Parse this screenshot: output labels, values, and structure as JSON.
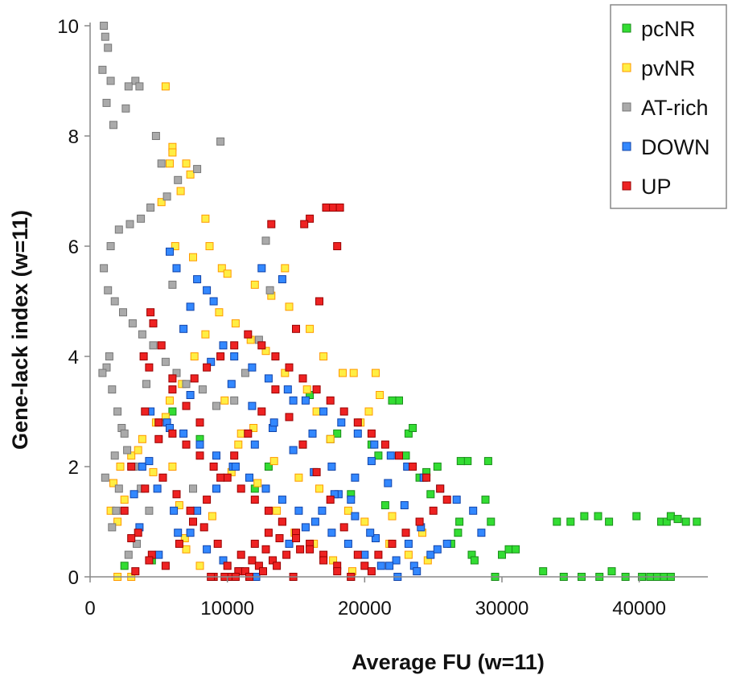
{
  "chart_data": {
    "type": "scatter",
    "title": "",
    "xlabel": "Average FU (w=11)",
    "ylabel": "Gene-lack index (w=11)",
    "xlim": [
      0,
      45000
    ],
    "ylim": [
      0,
      10
    ],
    "xticks": [
      0,
      10000,
      20000,
      30000,
      40000
    ],
    "yticks": [
      0,
      2,
      4,
      6,
      8,
      10
    ],
    "xtick_labels": [
      "0",
      "10000",
      "20000",
      "30000",
      "40000"
    ],
    "ytick_labels": [
      "0",
      "2",
      "4",
      "6",
      "8",
      "10"
    ],
    "legend_position": "top-right",
    "grid": false,
    "series": [
      {
        "name": "pcNR",
        "fill": "#33dd33",
        "edge": "#1a8c1a",
        "x": [
          34000,
          35000,
          36000,
          37000,
          37800,
          39800,
          41600,
          42000,
          42300,
          43400,
          44200,
          42800,
          33000,
          34500,
          35800,
          37100,
          38000,
          39000,
          40200,
          40800,
          41300,
          41800,
          42300,
          30000,
          30500,
          31000,
          29500,
          28800,
          29200,
          29000,
          27500,
          27000,
          26800,
          26300,
          27800,
          26900,
          28000,
          22500,
          22000,
          23200,
          23500,
          23000,
          24000,
          24500,
          21000,
          20500,
          21500,
          19000,
          18000,
          17500,
          16000,
          15500,
          13000,
          12000,
          8000,
          6000,
          4500,
          2500,
          24800,
          25300
        ],
        "y": [
          1.0,
          1.0,
          1.1,
          1.1,
          1.0,
          1.1,
          1.0,
          1.0,
          1.1,
          1.0,
          1.0,
          1.05,
          0.1,
          0.0,
          0.0,
          0.0,
          0.1,
          0.0,
          0.0,
          0.0,
          0.0,
          0.0,
          0.0,
          0.4,
          0.5,
          0.5,
          0.0,
          1.4,
          1.0,
          2.1,
          2.1,
          2.1,
          0.8,
          0.6,
          0.4,
          1.0,
          0.3,
          3.2,
          3.2,
          2.6,
          2.7,
          2.2,
          1.8,
          1.9,
          2.2,
          2.4,
          1.3,
          1.5,
          2.6,
          2.5,
          3.3,
          2.4,
          2.0,
          1.6,
          2.5,
          3.0,
          0.3,
          0.2,
          1.5,
          2.0
        ]
      },
      {
        "name": "pvNR",
        "fill": "#ffee44",
        "edge": "#ff9900",
        "x": [
          5500,
          6000,
          6000,
          5800,
          7000,
          7300,
          6600,
          8400,
          8700,
          5200,
          6200,
          7500,
          9600,
          10000,
          12000,
          13200,
          14500,
          16000,
          17000,
          18400,
          19200,
          20800,
          21100,
          20300,
          19700,
          17500,
          16500,
          15800,
          14200,
          12800,
          11700,
          10600,
          9400,
          8400,
          7600,
          6700,
          5800,
          4800,
          3800,
          3000,
          2200,
          1700,
          1500,
          2000,
          11000,
          13400,
          15200,
          16700,
          18800,
          20000,
          21800,
          23200,
          24600,
          24200,
          22000,
          9000,
          8000,
          7000,
          6500,
          6000,
          5500,
          9800,
          10800,
          12200,
          13600,
          14900,
          16300,
          17700,
          19100,
          2500,
          3500,
          4600,
          2000,
          3000,
          6900,
          8900,
          10300,
          11900,
          14200
        ],
        "y": [
          8.9,
          7.8,
          7.7,
          7.5,
          7.5,
          7.3,
          7.0,
          6.5,
          6.0,
          6.8,
          6.0,
          5.8,
          5.6,
          5.5,
          5.3,
          5.1,
          4.9,
          4.5,
          4.0,
          3.7,
          3.7,
          3.7,
          3.3,
          3.0,
          2.8,
          2.5,
          3.0,
          3.4,
          3.7,
          4.1,
          4.3,
          4.6,
          4.8,
          4.4,
          4.0,
          3.5,
          3.2,
          2.8,
          2.5,
          2.2,
          2.0,
          1.7,
          1.2,
          1.0,
          2.6,
          2.1,
          1.8,
          1.6,
          1.2,
          1.0,
          0.6,
          0.4,
          0.3,
          0.8,
          1.1,
          0.0,
          0.2,
          0.5,
          1.3,
          2.0,
          2.9,
          3.2,
          2.4,
          1.7,
          1.2,
          0.8,
          0.6,
          0.3,
          0.1,
          1.4,
          2.3,
          1.9,
          0.0,
          0.0,
          0.7,
          1.1,
          1.9,
          2.7,
          5.6
        ]
      },
      {
        "name": "AT-rich",
        "fill": "#aaaaaa",
        "edge": "#777777",
        "x": [
          1000,
          1100,
          1300,
          900,
          1500,
          3300,
          3600,
          2800,
          2600,
          1700,
          1200,
          4800,
          5200,
          9500,
          7800,
          6400,
          5600,
          4400,
          3700,
          2900,
          2100,
          1500,
          1000,
          1300,
          1800,
          2400,
          3100,
          3800,
          4600,
          5500,
          6300,
          7000,
          8200,
          9200,
          12800,
          13100,
          12300,
          11300,
          10500,
          1200,
          1600,
          2000,
          2300,
          2700,
          3200,
          3700,
          4300,
          1800,
          2100,
          900,
          1400,
          2500,
          1100,
          1900,
          3400,
          1600,
          2800,
          7500,
          6000,
          4100
        ],
        "y": [
          10.0,
          9.8,
          9.6,
          9.2,
          9.0,
          9.0,
          8.9,
          8.9,
          8.5,
          8.2,
          8.6,
          8.0,
          7.5,
          7.9,
          7.4,
          7.2,
          6.9,
          6.7,
          6.5,
          6.4,
          6.3,
          6.0,
          5.6,
          5.2,
          5.0,
          4.8,
          4.6,
          4.4,
          4.2,
          3.9,
          3.7,
          3.5,
          3.4,
          3.1,
          6.1,
          5.2,
          4.3,
          3.7,
          3.2,
          3.8,
          3.4,
          3.0,
          2.7,
          2.3,
          2.0,
          1.6,
          1.2,
          2.2,
          1.6,
          3.7,
          4.0,
          2.6,
          1.8,
          1.2,
          0.6,
          0.9,
          0.4,
          1.6,
          5.3,
          3.5
        ]
      },
      {
        "name": "DOWN",
        "fill": "#3388ff",
        "edge": "#1144aa",
        "x": [
          5800,
          6300,
          7800,
          8500,
          9000,
          12500,
          14000,
          7300,
          6800,
          9700,
          10500,
          11800,
          13000,
          14400,
          15700,
          17000,
          18300,
          19500,
          20700,
          21900,
          23100,
          24300,
          25500,
          26700,
          27900,
          28500,
          26000,
          24800,
          23600,
          22400,
          21200,
          20000,
          18800,
          17600,
          16400,
          15200,
          14000,
          12800,
          11600,
          10400,
          9200,
          8000,
          6800,
          5600,
          4400,
          3800,
          4900,
          6100,
          7300,
          8500,
          9700,
          10900,
          12100,
          13300,
          14500,
          15700,
          16900,
          18100,
          19300,
          20500,
          21700,
          22900,
          24100,
          25300,
          23800,
          22300,
          20800,
          19300,
          17800,
          16300,
          14800,
          13300,
          11800,
          10300,
          8800,
          7300,
          5800,
          4300,
          3200,
          3600,
          5000,
          6400,
          7800,
          9200,
          10600,
          12000,
          13400,
          14800,
          16200,
          17600,
          19000,
          20400,
          21800,
          23200
        ],
        "y": [
          5.9,
          5.6,
          5.4,
          5.2,
          5.0,
          5.6,
          5.4,
          4.9,
          4.5,
          4.2,
          4.0,
          3.8,
          3.6,
          3.4,
          3.2,
          3.0,
          2.8,
          2.6,
          2.4,
          2.2,
          2.0,
          1.8,
          1.6,
          1.4,
          1.2,
          0.8,
          0.6,
          0.4,
          0.2,
          0.0,
          0.2,
          0.4,
          0.6,
          0.8,
          1.0,
          1.2,
          1.4,
          1.6,
          1.8,
          2.0,
          2.2,
          2.4,
          2.6,
          2.8,
          3.0,
          2.0,
          1.6,
          1.2,
          0.8,
          0.5,
          0.3,
          0.1,
          0.0,
          0.3,
          0.6,
          0.9,
          1.2,
          1.5,
          1.8,
          2.1,
          1.7,
          1.3,
          0.9,
          0.5,
          0.1,
          0.3,
          0.7,
          1.1,
          1.5,
          1.9,
          2.3,
          2.7,
          3.1,
          3.5,
          3.9,
          3.3,
          2.7,
          2.1,
          1.5,
          0.9,
          0.4,
          0.8,
          1.2,
          1.6,
          2.0,
          2.4,
          2.8,
          3.2,
          2.6,
          2.0,
          1.4,
          0.8,
          0.2,
          0.6
        ]
      },
      {
        "name": "UP",
        "fill": "#ee2222",
        "edge": "#990000",
        "x": [
          17200,
          17700,
          18200,
          18000,
          16000,
          15600,
          13200,
          16700,
          15000,
          4400,
          4600,
          5200,
          3900,
          4300,
          6000,
          7600,
          8500,
          9500,
          10500,
          11500,
          12500,
          13500,
          14500,
          15500,
          16500,
          17500,
          18500,
          19500,
          20500,
          21500,
          22500,
          23500,
          24500,
          25500,
          26000,
          25000,
          24000,
          23000,
          22000,
          21000,
          20000,
          19000,
          18000,
          17000,
          16000,
          15000,
          14000,
          13000,
          12000,
          11000,
          10000,
          9000,
          8000,
          7000,
          6000,
          5000,
          4000,
          3000,
          2500,
          3500,
          4500,
          5500,
          6500,
          7500,
          8500,
          9500,
          10500,
          11500,
          12500,
          13500,
          14500,
          15500,
          16500,
          17500,
          18500,
          19500,
          20500,
          9000,
          10000,
          11000,
          12000,
          13000,
          14000,
          15000,
          16000,
          17000,
          18000,
          19000,
          8000,
          7000,
          6000,
          5000,
          4000,
          3000,
          8800,
          9800,
          10800,
          11800,
          12800,
          13800,
          14800,
          10300,
          11300,
          12300,
          13300,
          14300,
          15300,
          10600,
          11600,
          12600,
          13600,
          9300,
          8300,
          7300,
          6300,
          5300,
          4300,
          3300
        ],
        "y": [
          6.7,
          6.7,
          6.7,
          6.0,
          6.5,
          6.4,
          6.4,
          5.0,
          4.5,
          4.8,
          4.6,
          4.2,
          4.0,
          3.8,
          3.6,
          3.6,
          3.8,
          4.0,
          4.2,
          4.4,
          4.2,
          4.0,
          3.8,
          3.6,
          3.4,
          3.2,
          3.0,
          2.8,
          2.6,
          2.4,
          2.2,
          2.0,
          1.8,
          1.6,
          1.4,
          1.2,
          1.0,
          0.8,
          0.6,
          0.4,
          0.2,
          0.0,
          0.2,
          0.4,
          0.6,
          0.8,
          1.0,
          1.2,
          1.4,
          1.6,
          1.8,
          2.0,
          2.2,
          2.4,
          2.6,
          2.8,
          3.0,
          2.0,
          1.2,
          0.8,
          0.4,
          0.2,
          0.6,
          1.0,
          1.4,
          1.8,
          2.2,
          2.6,
          3.0,
          3.4,
          2.9,
          2.4,
          1.9,
          1.4,
          0.9,
          0.4,
          0.1,
          0.0,
          0.2,
          0.4,
          0.6,
          0.8,
          1.0,
          0.7,
          0.5,
          0.3,
          0.1,
          0.0,
          2.8,
          3.1,
          3.4,
          2.5,
          1.6,
          0.7,
          0.0,
          0.0,
          0.1,
          0.3,
          0.5,
          0.7,
          0.0,
          0.0,
          0.1,
          0.2,
          0.3,
          0.4,
          0.5,
          0.0,
          0.0,
          0.1,
          0.2,
          0.6,
          0.9,
          1.2,
          1.5,
          1.8,
          0.3,
          0.1
        ]
      }
    ]
  }
}
